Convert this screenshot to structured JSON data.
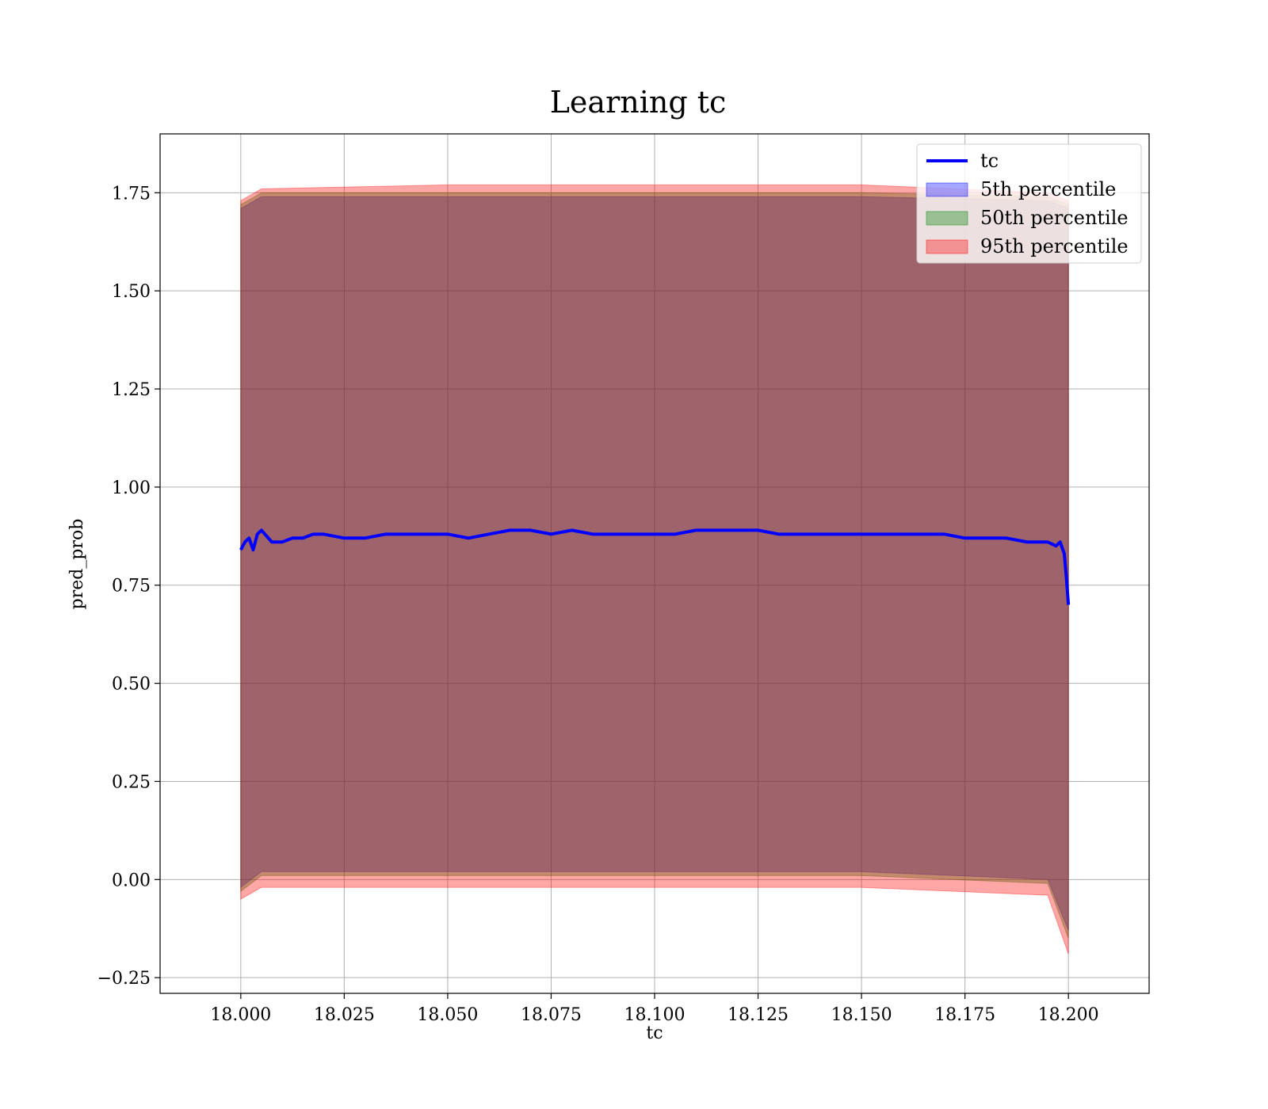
{
  "chart_data": {
    "type": "area",
    "title": "Learning tc",
    "xlabel": "tc",
    "ylabel": "pred_prob",
    "xlim": [
      17.9805,
      18.2195
    ],
    "ylim": [
      -0.29,
      1.9
    ],
    "xticks": [
      18.0,
      18.025,
      18.05,
      18.075,
      18.1,
      18.125,
      18.15,
      18.175,
      18.2
    ],
    "xtick_labels": [
      "18.000",
      "18.025",
      "18.050",
      "18.075",
      "18.100",
      "18.125",
      "18.150",
      "18.175",
      "18.200"
    ],
    "yticks": [
      -0.25,
      0.0,
      0.25,
      0.5,
      0.75,
      1.0,
      1.25,
      1.5,
      1.75
    ],
    "ytick_labels": [
      "−0.25",
      "0.00",
      "0.25",
      "0.50",
      "0.75",
      "1.00",
      "1.25",
      "1.50",
      "1.75"
    ],
    "grid": true,
    "legend_position": "top-right",
    "colors": {
      "line": "#0000ff",
      "band_5": "#0000ff",
      "band_50": "#008000",
      "band_95": "#ff0000"
    },
    "series": [
      {
        "name": "tc",
        "kind": "line",
        "x": [
          18.0,
          18.001,
          18.002,
          18.003,
          18.004,
          18.005,
          18.0075,
          18.01,
          18.0125,
          18.015,
          18.0175,
          18.02,
          18.025,
          18.03,
          18.035,
          18.04,
          18.045,
          18.05,
          18.055,
          18.06,
          18.065,
          18.07,
          18.075,
          18.08,
          18.085,
          18.09,
          18.095,
          18.1,
          18.105,
          18.11,
          18.115,
          18.12,
          18.125,
          18.13,
          18.135,
          18.14,
          18.145,
          18.15,
          18.155,
          18.16,
          18.165,
          18.17,
          18.175,
          18.18,
          18.185,
          18.19,
          18.195,
          18.197,
          18.198,
          18.199,
          18.1995,
          18.2
        ],
        "y": [
          0.84,
          0.86,
          0.87,
          0.84,
          0.88,
          0.89,
          0.86,
          0.86,
          0.87,
          0.87,
          0.88,
          0.88,
          0.87,
          0.87,
          0.88,
          0.88,
          0.88,
          0.88,
          0.87,
          0.88,
          0.89,
          0.89,
          0.88,
          0.89,
          0.88,
          0.88,
          0.88,
          0.88,
          0.88,
          0.89,
          0.89,
          0.89,
          0.89,
          0.88,
          0.88,
          0.88,
          0.88,
          0.88,
          0.88,
          0.88,
          0.88,
          0.88,
          0.87,
          0.87,
          0.87,
          0.86,
          0.86,
          0.85,
          0.86,
          0.83,
          0.77,
          0.7
        ]
      },
      {
        "name": "5th percentile",
        "kind": "band",
        "x": [
          18.0,
          18.005,
          18.05,
          18.1,
          18.15,
          18.195,
          18.2
        ],
        "lower": [
          -0.02,
          0.02,
          0.02,
          0.02,
          0.02,
          0.0,
          -0.13
        ],
        "upper": [
          1.71,
          1.74,
          1.74,
          1.74,
          1.74,
          1.73,
          1.71
        ]
      },
      {
        "name": "50th percentile",
        "kind": "band",
        "x": [
          18.0,
          18.005,
          18.05,
          18.1,
          18.15,
          18.195,
          18.2
        ],
        "lower": [
          -0.03,
          0.01,
          0.01,
          0.01,
          0.01,
          -0.01,
          -0.15
        ],
        "upper": [
          1.72,
          1.75,
          1.75,
          1.75,
          1.75,
          1.74,
          1.72
        ]
      },
      {
        "name": "95th percentile",
        "kind": "band",
        "x": [
          18.0,
          18.005,
          18.05,
          18.1,
          18.15,
          18.195,
          18.2
        ],
        "lower": [
          -0.05,
          -0.02,
          -0.02,
          -0.02,
          -0.02,
          -0.04,
          -0.19
        ],
        "upper": [
          1.73,
          1.76,
          1.77,
          1.77,
          1.77,
          1.75,
          1.73
        ]
      }
    ]
  }
}
